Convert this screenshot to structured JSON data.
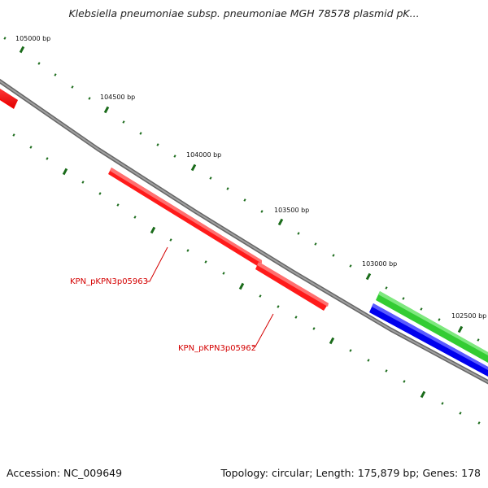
{
  "title": "Klebsiella pneumoniae subsp. pneumoniae MGH 78578 plasmid pK...",
  "footer": {
    "accession": "Accession: NC_009649",
    "summary": "Topology: circular; Length: 175,879 bp; Genes: 178"
  },
  "ticks": [
    {
      "label": "105000 bp",
      "bp": 105000
    },
    {
      "label": "104500 bp",
      "bp": 104500
    },
    {
      "label": "104000 bp",
      "bp": 104000
    },
    {
      "label": "103500 bp",
      "bp": 103500
    },
    {
      "label": "103000 bp",
      "bp": 103000
    },
    {
      "label": "102500 bp",
      "bp": 102500
    }
  ],
  "genes": [
    {
      "label": "KPN_pKPN3p05963",
      "color": "#ff0000",
      "strand": "forward"
    },
    {
      "label": "KPN_pKPN3p05962",
      "color": "#ff0000",
      "strand": "forward"
    },
    {
      "label": "",
      "color": "#ff0000",
      "strand": "forward"
    },
    {
      "label": "",
      "color": "#33cc33",
      "strand": "forward"
    },
    {
      "label": "",
      "color": "#0000ee",
      "strand": "reverse"
    }
  ],
  "colors": {
    "backbone": "#888888",
    "tick": "#1a6b1a",
    "label_line": "#d40000"
  }
}
